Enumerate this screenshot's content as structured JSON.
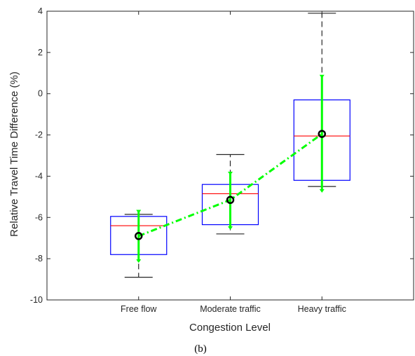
{
  "chart_data": {
    "type": "box",
    "xlabel": "Congestion Level",
    "ylabel": "Relative Travel Time Difference (%)",
    "caption": "(b)",
    "ylim": [
      -10,
      4
    ],
    "yticks": [
      -10,
      -8,
      -6,
      -4,
      -2,
      0,
      2,
      4
    ],
    "categories": [
      "Free flow",
      "Moderate traffic",
      "Heavy traffic"
    ],
    "boxes": [
      {
        "whisker_low": -8.9,
        "q1": -7.8,
        "median": -6.4,
        "q3": -5.95,
        "whisker_high": -5.85
      },
      {
        "whisker_low": -6.8,
        "q1": -6.35,
        "median": -4.85,
        "q3": -4.4,
        "whisker_high": -2.95
      },
      {
        "whisker_low": -4.5,
        "q1": -4.2,
        "median": -2.05,
        "q3": -0.3,
        "whisker_high": 3.9
      }
    ],
    "mean_series": {
      "values": [
        -6.9,
        -5.15,
        -1.95
      ],
      "error_low": [
        -8.1,
        -6.5,
        -4.7
      ],
      "error_high": [
        -5.7,
        -3.85,
        0.85
      ]
    },
    "colors": {
      "box": "#0000ff",
      "median": "#ff0000",
      "whisker": "#262626",
      "mean_line": "#00ff00",
      "mean_marker": "#000000"
    }
  }
}
